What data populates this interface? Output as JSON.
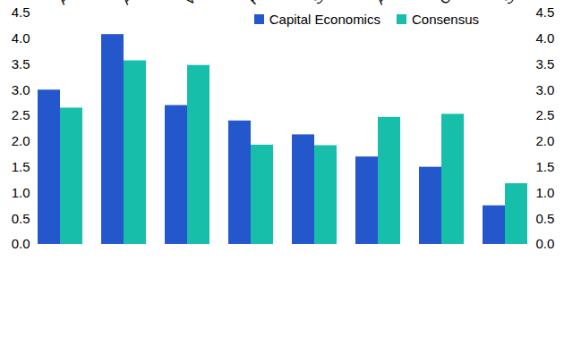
{
  "chart_data": {
    "type": "bar",
    "categories": [
      "All-Prop.",
      "All-Ind.",
      "W.End Off.",
      "Ret. Ware.",
      "Std. Shops",
      "All-Office",
      "City Off.",
      "Shop. Cent."
    ],
    "series": [
      {
        "name": "Capital Economics",
        "color": "#2457cc",
        "values": [
          3.0,
          4.08,
          2.7,
          2.4,
          2.13,
          1.7,
          1.5,
          0.75
        ]
      },
      {
        "name": "Consensus",
        "color": "#17bfab",
        "values": [
          2.65,
          3.57,
          3.48,
          1.93,
          1.92,
          2.47,
          2.53,
          1.18
        ]
      }
    ],
    "ylim": [
      0,
      4.5
    ],
    "yticks": [
      {
        "value": 0,
        "label": "0.0"
      },
      {
        "value": 0.5,
        "label": "0.5"
      },
      {
        "value": 1,
        "label": "1.0"
      },
      {
        "value": 1.5,
        "label": "1.5"
      },
      {
        "value": 2,
        "label": "2.0"
      },
      {
        "value": 2.5,
        "label": "2.5"
      },
      {
        "value": 3,
        "label": "3.0"
      },
      {
        "value": 3.5,
        "label": "3.5"
      },
      {
        "value": 4,
        "label": "4.0"
      },
      {
        "value": 4.5,
        "label": "4.5"
      }
    ],
    "legend": "top-right",
    "grid": false
  }
}
